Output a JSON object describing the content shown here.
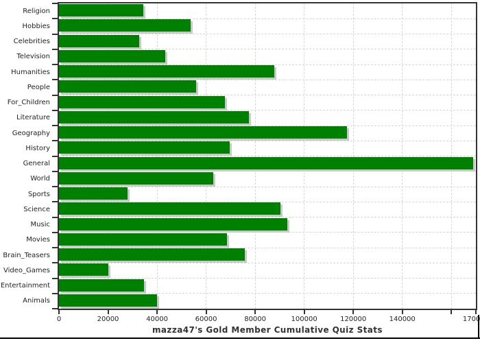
{
  "chart_data": {
    "type": "bar",
    "orientation": "horizontal",
    "title": "mazza47's Gold Member Cumulative Quiz Stats",
    "categories": [
      "Religion",
      "Hobbies",
      "Celebrities",
      "Television",
      "Humanities",
      "People",
      "For_Children",
      "Literature",
      "Geography",
      "History",
      "General",
      "World",
      "Sports",
      "Science",
      "Music",
      "Movies",
      "Brain_Teasers",
      "Video_Games",
      "Entertainment",
      "Animals"
    ],
    "values": [
      34400,
      53800,
      32700,
      43300,
      87700,
      55800,
      67600,
      77400,
      117400,
      69500,
      168800,
      63000,
      27900,
      90200,
      93000,
      68600,
      75800,
      20100,
      34600,
      40100
    ],
    "xlabel": "",
    "ylabel": "",
    "xlim": [
      0,
      170000
    ],
    "x_ticks": [
      0,
      20000,
      40000,
      60000,
      80000,
      100000,
      120000,
      140000,
      160000,
      170000
    ],
    "x_tick_labels": [
      "0",
      "20000",
      "40000",
      "60000",
      "80000",
      "100000",
      "120000",
      "140000",
      "",
      "170000"
    ],
    "grid": true,
    "legend_position": "none",
    "colors": {
      "bar": "#008000",
      "bar_shadow": "#c9c9c9",
      "gridline": "#d6d6d6",
      "axis_border": "#333333",
      "tick_text": "#222222",
      "title_text": "#333333",
      "background": "#ffffff",
      "bottom_rule": "#000000"
    }
  }
}
